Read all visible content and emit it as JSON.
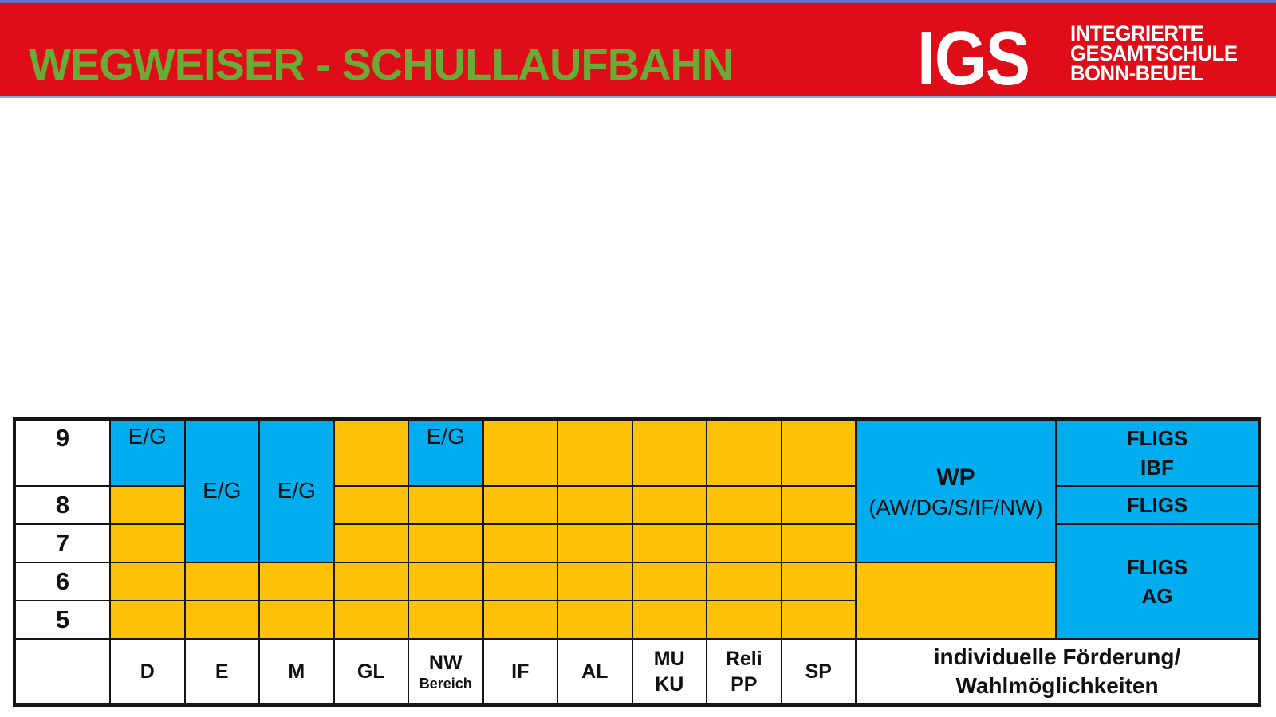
{
  "banner": {
    "title": "WEGWEISER - SCHULLAUFBAHN",
    "logo": {
      "acronym": "IGS",
      "line1": "INTEGRIERTE",
      "line2": "GESAMTSCHULE",
      "line3": "BONN-BEUEL"
    }
  },
  "colors": {
    "banner_red": "#DE0D18",
    "title_green": "#68AB36",
    "cell_blue": "#00AEEF",
    "cell_yellow": "#FDC108"
  },
  "table": {
    "row_labels": [
      "9",
      "8",
      "7",
      "6",
      "5"
    ],
    "eg_label": "E/G",
    "wp_cell": {
      "line1": "WP",
      "line2": "(AW/DG/S/IF/NW)"
    },
    "fligs_ibf": {
      "line1": "FLIGS",
      "line2": "IBF"
    },
    "fligs": "FLIGS",
    "fligs_ag": {
      "line1": "FLIGS",
      "line2": "AG"
    },
    "headers": {
      "d": "D",
      "e": "E",
      "m": "M",
      "gl": "GL",
      "nw_line1": "NW",
      "nw_line2": "Bereich",
      "if": "IF",
      "al": "AL",
      "mu_line1": "MU",
      "mu_line2": "KU",
      "reli_line1": "Reli",
      "reli_line2": "PP",
      "sp": "SP"
    },
    "footer": {
      "line1": "individuelle Förderung/",
      "line2": "Wahlmöglichkeiten"
    }
  }
}
